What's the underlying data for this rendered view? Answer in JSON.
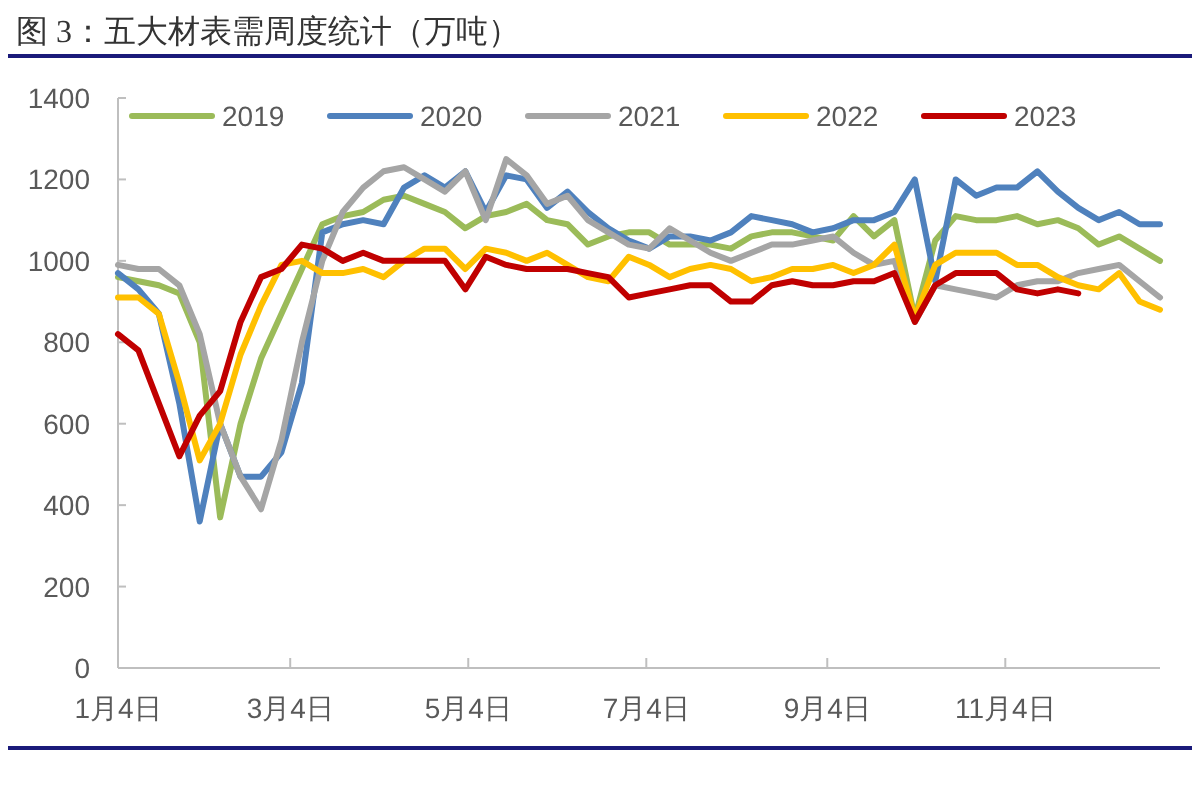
{
  "chart_data": {
    "type": "line",
    "title": "图 3：五大材表需周度统计（万吨）",
    "x": [
      "--01-04",
      "--01-11",
      "--01-18",
      "--01-25",
      "--02-01",
      "--02-08",
      "--02-15",
      "--02-22",
      "--03-01",
      "--03-08",
      "--03-15",
      "--03-22",
      "--03-29",
      "--04-05",
      "--04-12",
      "--04-19",
      "--04-26",
      "--05-03",
      "--05-10",
      "--05-17",
      "--05-24",
      "--05-31",
      "--06-07",
      "--06-14",
      "--06-21",
      "--06-28",
      "--07-05",
      "--07-12",
      "--07-19",
      "--07-26",
      "--08-02",
      "--08-09",
      "--08-16",
      "--08-23",
      "--08-30",
      "--09-06",
      "--09-13",
      "--09-20",
      "--09-27",
      "--10-04",
      "--10-11",
      "--10-18",
      "--10-25",
      "--11-01",
      "--11-08",
      "--11-15",
      "--11-22",
      "--11-29",
      "--12-06",
      "--12-13",
      "--12-20",
      "--12-27"
    ],
    "series": [
      {
        "name": "2019",
        "color": "#9bbb59",
        "values": [
          960,
          950,
          940,
          920,
          800,
          370,
          600,
          760,
          870,
          980,
          1090,
          1110,
          1120,
          1150,
          1160,
          1140,
          1120,
          1080,
          1110,
          1120,
          1140,
          1100,
          1090,
          1040,
          1060,
          1070,
          1070,
          1040,
          1040,
          1040,
          1030,
          1060,
          1070,
          1070,
          1060,
          1050,
          1110,
          1060,
          1100,
          860,
          1050,
          1110,
          1100,
          1100,
          1110,
          1090,
          1100,
          1080,
          1040,
          1060,
          1030,
          1000
        ]
      },
      {
        "name": "2020",
        "color": "#4f81bd",
        "values": [
          970,
          930,
          870,
          650,
          360,
          600,
          470,
          470,
          530,
          700,
          1070,
          1090,
          1100,
          1090,
          1180,
          1210,
          1180,
          1220,
          1120,
          1210,
          1200,
          1130,
          1170,
          1120,
          1080,
          1050,
          1030,
          1060,
          1060,
          1050,
          1070,
          1110,
          1100,
          1090,
          1070,
          1080,
          1100,
          1100,
          1120,
          1200,
          950,
          1200,
          1160,
          1180,
          1180,
          1220,
          1170,
          1130,
          1100,
          1120,
          1090,
          1090
        ]
      },
      {
        "name": "2021",
        "color": "#a5a5a5",
        "values": [
          990,
          980,
          980,
          940,
          820,
          600,
          470,
          390,
          560,
          800,
          1000,
          1120,
          1180,
          1220,
          1230,
          1200,
          1170,
          1220,
          1100,
          1250,
          1210,
          1140,
          1160,
          1100,
          1070,
          1040,
          1030,
          1080,
          1050,
          1020,
          1000,
          1020,
          1040,
          1040,
          1050,
          1060,
          1020,
          990,
          1000,
          850,
          940,
          930,
          920,
          910,
          940,
          950,
          950,
          970,
          980,
          990,
          950,
          910
        ]
      },
      {
        "name": "2022",
        "color": "#ffc000",
        "values": [
          910,
          910,
          870,
          700,
          510,
          600,
          770,
          890,
          990,
          1000,
          970,
          970,
          980,
          960,
          1000,
          1030,
          1030,
          980,
          1030,
          1020,
          1000,
          1020,
          990,
          960,
          950,
          1010,
          990,
          960,
          980,
          990,
          980,
          950,
          960,
          980,
          980,
          990,
          970,
          990,
          1040,
          860,
          990,
          1020,
          1020,
          1020,
          990,
          990,
          960,
          940,
          930,
          970,
          900,
          880
        ]
      },
      {
        "name": "2023",
        "color": "#c00000",
        "values": [
          820,
          780,
          650,
          520,
          620,
          680,
          850,
          960,
          980,
          1040,
          1030,
          1000,
          1020,
          1000,
          1000,
          1000,
          1000,
          930,
          1010,
          990,
          980,
          980,
          980,
          970,
          960,
          910,
          920,
          930,
          940,
          940,
          900,
          900,
          940,
          950,
          940,
          940,
          950,
          950,
          970,
          850,
          940,
          970,
          970,
          970,
          930,
          920,
          930,
          920,
          null,
          null,
          null,
          null
        ]
      }
    ],
    "xlim": [
      "--01-04",
      "--12-27"
    ],
    "xticks": [
      {
        "value": "--01-04",
        "label": "1月4日"
      },
      {
        "value": "--03-04",
        "label": "3月4日"
      },
      {
        "value": "--05-04",
        "label": "5月4日"
      },
      {
        "value": "--07-04",
        "label": "7月4日"
      },
      {
        "value": "--09-04",
        "label": "9月4日"
      },
      {
        "value": "--11-04",
        "label": "11月4日"
      }
    ],
    "ylim": [
      0,
      1400
    ],
    "yticks": [
      0,
      200,
      400,
      600,
      800,
      1000,
      1200,
      1400
    ],
    "legend": "top"
  }
}
